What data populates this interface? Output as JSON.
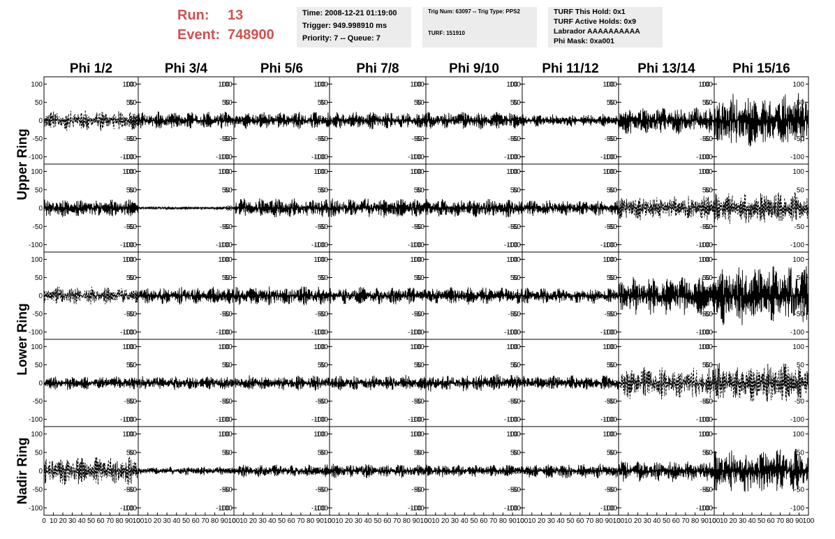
{
  "header": {
    "run_label": "Run:",
    "run_value": "13",
    "event_label": "Event:",
    "event_value": "748900",
    "time_box": {
      "time": "Time: 2008-12-21 01:19:00",
      "trigger": "Trigger: 949.998910 ms",
      "priority": "Priority: 7 -- Queue: 7"
    },
    "trig_box": {
      "trig": "Trig Num: 63097 -- Trig Type: PPS2",
      "turf": "TURF: 151910"
    },
    "turf_box": {
      "this_hold": "TURF This Hold: 0x1",
      "active_holds": "TURF Active Holds: 0x9",
      "labrador": "Labrador AAAAAAAAAA",
      "phi_mask": "Phi Mask: 0xa001"
    },
    "colors": {
      "run_text": "#d05050",
      "box_bg": "#ececec",
      "trace": "#000000"
    }
  },
  "chart_data": {
    "type": "line",
    "layout": "grid 8 columns x 5 rows of waveform panels",
    "column_titles": [
      "Phi 1/2",
      "Phi 3/4",
      "Phi 5/6",
      "Phi 7/8",
      "Phi 9/10",
      "Phi 11/12",
      "Phi 13/14",
      "Phi 15/16"
    ],
    "ring_titles": [
      "Upper Ring",
      "Lower Ring",
      "Nadir Ring"
    ],
    "ylim": [
      -120,
      120
    ],
    "yticks": [
      -100,
      -50,
      0,
      50,
      100
    ],
    "ytick_labels": [
      "-100",
      "-50",
      "0",
      "50",
      "100"
    ],
    "xlim": [
      0,
      100
    ],
    "xticks": [
      0,
      10,
      20,
      30,
      40,
      50,
      60,
      70,
      80,
      90,
      100
    ],
    "xtick_labels": [
      "0",
      "10",
      "20",
      "30",
      "40",
      "50",
      "60",
      "70",
      "80",
      "90",
      "100"
    ],
    "waveform_amplitudes": [
      [
        30,
        25,
        25,
        25,
        25,
        18,
        40,
        80
      ],
      [
        25,
        5,
        28,
        28,
        28,
        22,
        35,
        45
      ],
      [
        25,
        25,
        28,
        25,
        25,
        22,
        55,
        85
      ],
      [
        20,
        20,
        22,
        22,
        25,
        22,
        45,
        55
      ],
      [
        40,
        12,
        18,
        20,
        18,
        22,
        30,
        60
      ]
    ],
    "waveform_dashed": [
      [
        true,
        false,
        false,
        false,
        false,
        false,
        false,
        false
      ],
      [
        false,
        false,
        false,
        false,
        false,
        false,
        true,
        true
      ],
      [
        true,
        false,
        false,
        false,
        false,
        false,
        false,
        false
      ],
      [
        false,
        false,
        false,
        false,
        false,
        false,
        true,
        true
      ],
      [
        true,
        false,
        false,
        false,
        false,
        false,
        false,
        false
      ]
    ]
  }
}
